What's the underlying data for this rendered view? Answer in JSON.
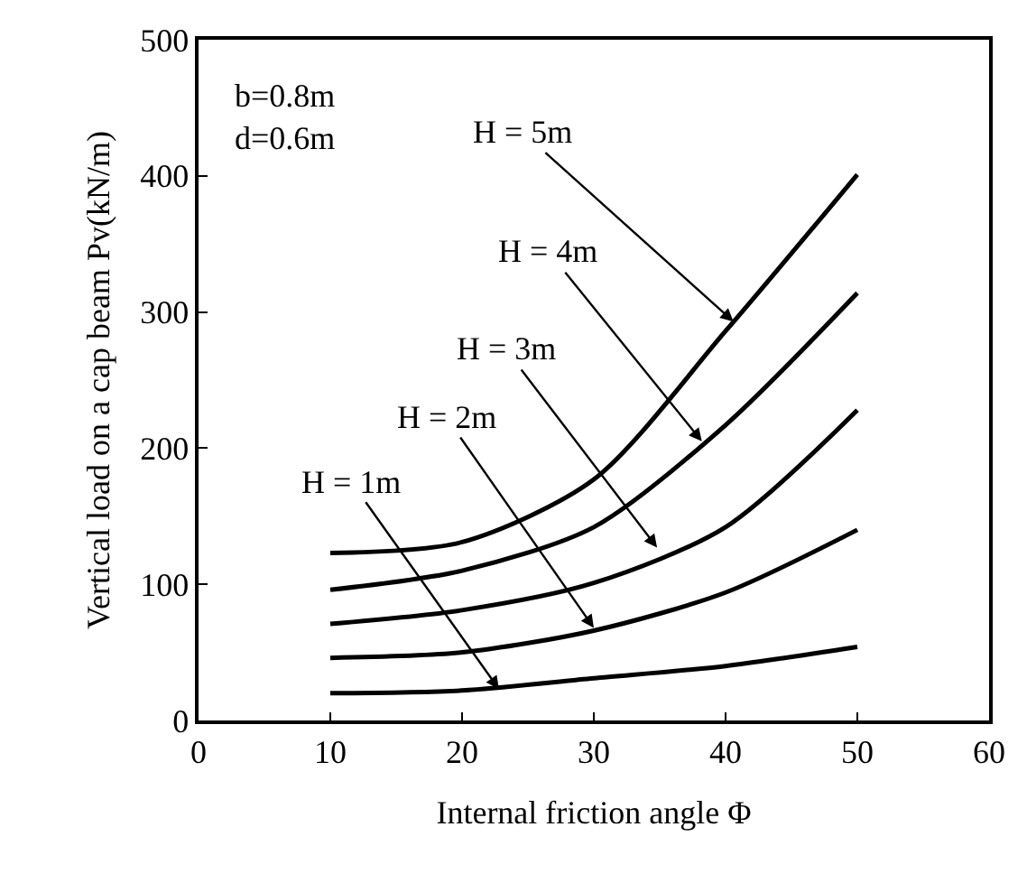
{
  "chart_data": {
    "type": "line",
    "xlabel": "Internal friction angle Φ",
    "ylabel": "Vertical load on a cap beam Pv(kN/m)",
    "x": [
      10,
      20,
      30,
      40,
      50
    ],
    "series": [
      {
        "color": "#000000",
        "values": [
          20,
          22,
          31,
          40,
          54
        ]
      },
      {
        "color": "#000000",
        "values": [
          46,
          50,
          66,
          94,
          140
        ]
      },
      {
        "color": "#000000",
        "values": [
          71,
          81,
          101,
          142,
          228
        ]
      },
      {
        "color": "#000000",
        "values": [
          96,
          110,
          142,
          217,
          314
        ]
      },
      {
        "color": "#000000",
        "values": [
          123,
          131,
          177,
          286,
          401
        ]
      }
    ],
    "annotations": [
      "b=0.8m\nd=0.6m",
      {
        "text": "H = 1m",
        "x": 22.8,
        "y": 23
      },
      {
        "text": "H = 2m",
        "x": 30,
        "y": 68
      },
      {
        "text": "H = 3m",
        "x": 34.8,
        "y": 127
      },
      {
        "text": "H = 4m",
        "x": 38.2,
        "y": 205
      },
      {
        "text": "H = 5m",
        "x": 40.6,
        "y": 293
      }
    ],
    "xlim": [
      0,
      60
    ],
    "xticks": [
      0,
      10,
      20,
      30,
      40,
      50,
      60
    ],
    "ylim": [
      0,
      500
    ],
    "yticks": [
      0,
      100,
      200,
      300,
      400,
      500
    ],
    "marker": "none",
    "line_style": "solid"
  }
}
